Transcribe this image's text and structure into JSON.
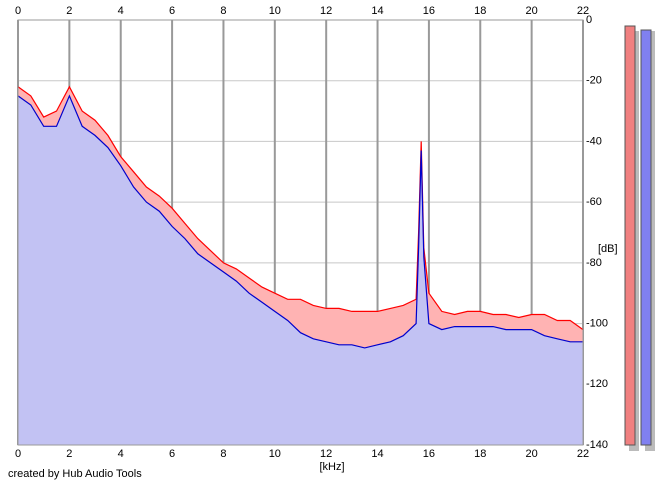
{
  "chart_data": {
    "type": "area",
    "x_label": "[kHz]",
    "y_label": "[dB]",
    "credit": "created by Hub Audio Tools",
    "x": [
      0,
      0.5,
      1,
      1.5,
      2,
      2.5,
      3,
      3.5,
      4,
      4.5,
      5,
      5.5,
      6,
      6.5,
      7,
      7.5,
      8,
      8.5,
      9,
      9.5,
      10,
      10.5,
      11,
      11.5,
      12,
      12.5,
      13,
      13.5,
      14,
      14.5,
      15,
      15.5,
      15.6,
      15.7,
      15.8,
      16,
      16.5,
      17,
      17.5,
      18,
      18.5,
      19,
      19.5,
      20,
      20.5,
      21,
      21.5,
      22
    ],
    "series": [
      {
        "color": "#ff0000",
        "values": [
          -22,
          -25,
          -32,
          -30,
          -22,
          -30,
          -33,
          -38,
          -45,
          -50,
          -55,
          -58,
          -62,
          -67,
          -72,
          -76,
          -80,
          -82,
          -85,
          -88,
          -90,
          -92,
          -92,
          -94,
          -95,
          -95,
          -96,
          -96,
          -96,
          -95,
          -94,
          -92,
          -70,
          -40,
          -75,
          -90,
          -96,
          -97,
          -96,
          -96,
          -97,
          -97,
          -98,
          -97,
          -97,
          -99,
          -99,
          -102
        ]
      },
      {
        "color": "#0000cc",
        "values": [
          -25,
          -28,
          -35,
          -35,
          -25,
          -35,
          -38,
          -42,
          -48,
          -55,
          -60,
          -63,
          -68,
          -72,
          -77,
          -80,
          -83,
          -86,
          -90,
          -93,
          -96,
          -99,
          -103,
          -105,
          -106,
          -107,
          -107,
          -108,
          -107,
          -106,
          -104,
          -100,
          -75,
          -43,
          -78,
          -100,
          -102,
          -101,
          -101,
          -101,
          -101,
          -102,
          -102,
          -102,
          -104,
          -105,
          -106,
          -106
        ]
      }
    ],
    "xlim": [
      0,
      22
    ],
    "xticks": [
      0,
      2,
      4,
      6,
      8,
      10,
      12,
      14,
      16,
      18,
      20,
      22
    ],
    "ylim": [
      -140,
      0
    ],
    "yticks": [
      0,
      -20,
      -40,
      -60,
      -80,
      -100,
      -120,
      -140
    ],
    "grid": true
  }
}
